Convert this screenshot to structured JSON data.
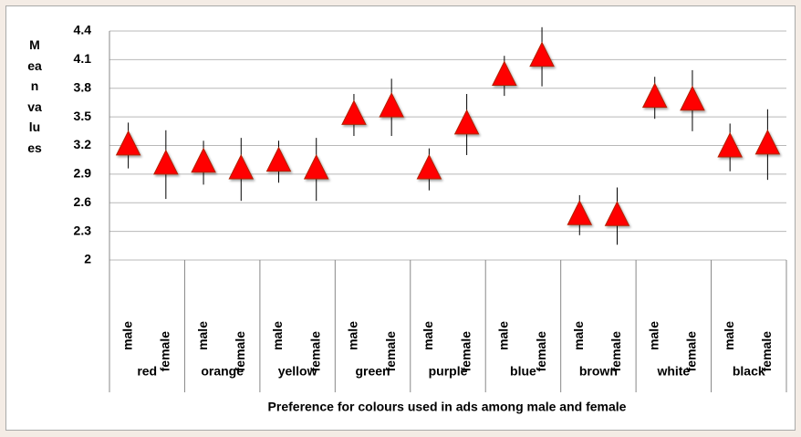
{
  "chart_data": {
    "type": "scatter",
    "y_label": "Mean values",
    "x_label": "Preference for colours used in ads among male and female",
    "groups": [
      "red",
      "orange",
      "yellow",
      "green",
      "purple",
      "blue",
      "brown",
      "white",
      "black"
    ],
    "categories": [
      "male",
      "female",
      "male",
      "female",
      "male",
      "female",
      "male",
      "female",
      "male",
      "female",
      "male",
      "female",
      "male",
      "female",
      "male",
      "female",
      "male",
      "female"
    ],
    "values": [
      3.2,
      3.0,
      3.02,
      2.95,
      3.03,
      2.95,
      3.52,
      3.6,
      2.95,
      3.42,
      3.93,
      4.13,
      2.47,
      2.46,
      3.7,
      3.67,
      3.18,
      3.21
    ],
    "errors": [
      0.24,
      0.36,
      0.23,
      0.33,
      0.22,
      0.33,
      0.22,
      0.3,
      0.22,
      0.32,
      0.21,
      0.31,
      0.21,
      0.3,
      0.22,
      0.32,
      0.25,
      0.37
    ],
    "color": "#ff0000",
    "ylim": [
      2,
      4.4
    ],
    "yticks": [
      2,
      2.3,
      2.6,
      2.9,
      3.2,
      3.5,
      3.8,
      4.1,
      4.4
    ],
    "grid": true
  }
}
